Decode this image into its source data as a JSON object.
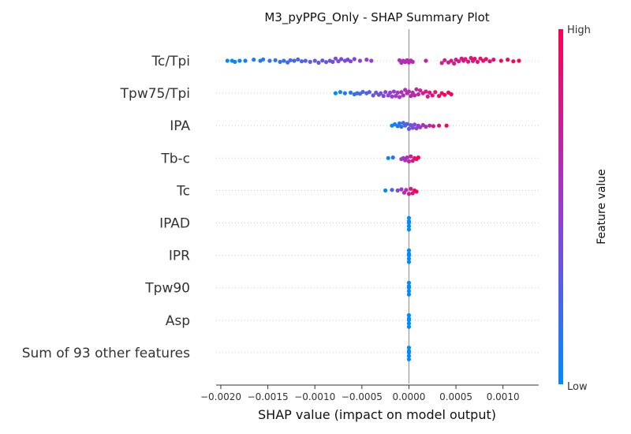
{
  "chart_data": {
    "type": "scatter",
    "subtype": "shap-beeswarm",
    "title": "M3_pyPPG_Only - SHAP Summary Plot",
    "xlabel": "SHAP value (impact on model output)",
    "xlim": [
      -0.00205,
      0.00138
    ],
    "x_ticks": [
      -0.002,
      -0.0015,
      -0.001,
      -0.0005,
      0.0,
      0.0005,
      0.001
    ],
    "x_tick_labels": [
      "−0.0020",
      "−0.0015",
      "−0.0010",
      "−0.0005",
      "0.0000",
      "0.0005",
      "0.0010"
    ],
    "features": [
      {
        "name": "Tc/Tpi",
        "points": [
          [
            -0.00193,
            0.0
          ],
          [
            -0.00188,
            0.0
          ],
          [
            -0.00185,
            0.1
          ],
          [
            -0.0018,
            0.0
          ],
          [
            -0.00174,
            0.0
          ],
          [
            -0.00165,
            0.1
          ],
          [
            -0.00158,
            0.0
          ],
          [
            -0.00155,
            0.12
          ],
          [
            -0.00148,
            0.0
          ],
          [
            -0.00142,
            0.05
          ],
          [
            -0.00137,
            0.1
          ],
          [
            -0.00133,
            0.0
          ],
          [
            -0.00129,
            0.15
          ],
          [
            -0.00126,
            0.05
          ],
          [
            -0.00122,
            0.0
          ],
          [
            -0.00118,
            0.12
          ],
          [
            -0.00114,
            0.05
          ],
          [
            -0.0011,
            0.0
          ],
          [
            -0.00105,
            0.1
          ],
          [
            -0.001,
            0.0
          ],
          [
            -0.00096,
            0.18
          ],
          [
            -0.00092,
            0.02
          ],
          [
            -0.00088,
            0.12
          ],
          [
            -0.00084,
            0.0
          ],
          [
            -0.00081,
            0.1
          ],
          [
            -0.00078,
            0.2
          ],
          [
            -0.00075,
            0.05
          ],
          [
            -0.00072,
            0.15
          ],
          [
            -0.00068,
            0.0
          ],
          [
            -0.00065,
            0.1
          ],
          [
            -0.00062,
            0.05
          ],
          [
            -0.00058,
            0.15
          ],
          [
            -0.00052,
            0.0
          ],
          [
            -0.00045,
            0.1
          ],
          [
            -0.0004,
            0.0
          ],
          [
            -0.0001,
            0.05
          ],
          [
            -8e-05,
            0.18
          ],
          [
            -6e-05,
            0.0
          ],
          [
            -4e-05,
            0.12
          ],
          [
            -2e-05,
            0.05
          ],
          [
            0.0,
            0.15
          ],
          [
            2e-05,
            0.02
          ],
          [
            4e-05,
            0.1
          ],
          [
            0.00018,
            0.0
          ],
          [
            0.00035,
            0.2
          ],
          [
            0.00038,
            0.05
          ],
          [
            0.00042,
            0.15
          ],
          [
            0.00045,
            0.0
          ],
          [
            0.00048,
            0.25
          ],
          [
            0.0005,
            0.1
          ],
          [
            0.00053,
            0.05
          ],
          [
            0.00056,
            0.2
          ],
          [
            0.00058,
            0.0
          ],
          [
            0.0006,
            0.15
          ],
          [
            0.00063,
            0.08
          ],
          [
            0.00066,
            0.25
          ],
          [
            0.00068,
            0.02
          ],
          [
            0.0007,
            0.18
          ],
          [
            0.00073,
            0.1
          ],
          [
            0.00076,
            0.2
          ],
          [
            0.00079,
            0.0
          ],
          [
            0.00082,
            0.15
          ],
          [
            0.00086,
            0.05
          ],
          [
            0.0009,
            0.1
          ],
          [
            0.00098,
            0.0
          ],
          [
            0.00105,
            0.1
          ],
          [
            0.00111,
            0.05
          ],
          [
            0.00117,
            0.0
          ]
        ]
      },
      {
        "name": "Tpw75/Tpi",
        "points": [
          [
            -0.00078,
            0.0
          ],
          [
            -0.00073,
            0.1
          ],
          [
            -0.00068,
            0.0
          ],
          [
            -0.00062,
            0.05
          ],
          [
            -0.00058,
            0.1
          ],
          [
            -0.00055,
            0.0
          ],
          [
            -0.00052,
            0.05
          ],
          [
            -0.00049,
            0.12
          ],
          [
            -0.00045,
            0.0
          ],
          [
            -0.00042,
            0.1
          ],
          [
            -0.00038,
            0.2
          ],
          [
            -0.00035,
            0.05
          ],
          [
            -0.00032,
            0.15
          ],
          [
            -0.0003,
            0.0
          ],
          [
            -0.00027,
            0.25
          ],
          [
            -0.00025,
            0.1
          ],
          [
            -0.00022,
            0.2
          ],
          [
            -0.0002,
            0.05
          ],
          [
            -0.00018,
            0.3
          ],
          [
            -0.00016,
            0.15
          ],
          [
            -0.00014,
            0.25
          ],
          [
            -0.00012,
            0.05
          ],
          [
            -0.0001,
            0.35
          ],
          [
            -8e-05,
            0.1
          ],
          [
            -6e-05,
            0.2
          ],
          [
            -4e-05,
            0.3
          ],
          [
            -2e-05,
            0.0
          ],
          [
            0.0,
            0.15
          ],
          [
            2e-05,
            0.25
          ],
          [
            4e-05,
            0.05
          ],
          [
            6e-05,
            0.2
          ],
          [
            8e-05,
            0.35
          ],
          [
            0.0001,
            0.1
          ],
          [
            0.00012,
            0.25
          ],
          [
            0.00015,
            0.0
          ],
          [
            0.00018,
            0.15
          ],
          [
            0.0002,
            0.3
          ],
          [
            0.00022,
            0.05
          ],
          [
            0.00025,
            0.2
          ],
          [
            0.00028,
            0.1
          ],
          [
            0.00032,
            0.25
          ],
          [
            0.00035,
            0.0
          ],
          [
            0.00038,
            0.15
          ],
          [
            0.00042,
            0.05
          ],
          [
            0.00045,
            0.1
          ]
        ]
      },
      {
        "name": "IPA",
        "points": [
          [
            -0.00018,
            0.0
          ],
          [
            -0.00015,
            0.12
          ],
          [
            -0.00012,
            0.05
          ],
          [
            -0.0001,
            0.2
          ],
          [
            -8e-05,
            0.1
          ],
          [
            -6e-05,
            0.25
          ],
          [
            -4e-05,
            0.0
          ],
          [
            -2e-05,
            0.15
          ],
          [
            0.0,
            0.3
          ],
          [
            2e-05,
            0.05
          ],
          [
            4e-05,
            0.2
          ],
          [
            6e-05,
            0.1
          ],
          [
            8e-05,
            0.25
          ],
          [
            0.0001,
            0.0
          ],
          [
            0.00012,
            0.15
          ],
          [
            0.00015,
            0.05
          ],
          [
            0.00018,
            0.1
          ],
          [
            0.00022,
            0.0
          ],
          [
            0.00026,
            0.05
          ],
          [
            0.00032,
            0.0
          ],
          [
            0.0004,
            0.0
          ]
        ]
      },
      {
        "name": "Tb-c",
        "points": [
          [
            -0.00022,
            0.0
          ],
          [
            -0.00017,
            0.05
          ],
          [
            -8e-05,
            0.1
          ],
          [
            -6e-05,
            0.0
          ],
          [
            -4e-05,
            0.2
          ],
          [
            -2e-05,
            0.05
          ],
          [
            0.0,
            0.3
          ],
          [
            2e-05,
            0.15
          ],
          [
            4e-05,
            0.25
          ],
          [
            6e-05,
            0.0
          ],
          [
            8e-05,
            0.1
          ],
          [
            0.0001,
            0.05
          ]
        ]
      },
      {
        "name": "Tc",
        "points": [
          [
            -0.00025,
            0.0
          ],
          [
            -0.00018,
            0.05
          ],
          [
            -0.00012,
            0.0
          ],
          [
            -8e-05,
            0.1
          ],
          [
            -5e-05,
            0.2
          ],
          [
            -3e-05,
            0.05
          ],
          [
            0.0,
            0.3
          ],
          [
            2e-05,
            0.15
          ],
          [
            4e-05,
            0.25
          ],
          [
            6e-05,
            0.0
          ],
          [
            8e-05,
            0.1
          ]
        ]
      },
      {
        "name": "IPAD",
        "points": [
          [
            0.0,
            0.0
          ],
          [
            0.0,
            0.15
          ],
          [
            0.0,
            0.3
          ],
          [
            0.0,
            0.45
          ],
          [
            0.0,
            0.6
          ]
        ]
      },
      {
        "name": "IPR",
        "points": [
          [
            0.0,
            0.0
          ],
          [
            0.0,
            0.15
          ],
          [
            0.0,
            0.3
          ],
          [
            0.0,
            0.45
          ],
          [
            0.0,
            0.6
          ]
        ]
      },
      {
        "name": "Tpw90",
        "points": [
          [
            0.0,
            0.0
          ],
          [
            0.0,
            0.15
          ],
          [
            0.0,
            0.3
          ],
          [
            0.0,
            0.45
          ],
          [
            0.0,
            0.6
          ]
        ]
      },
      {
        "name": "Asp",
        "points": [
          [
            0.0,
            0.0
          ],
          [
            0.0,
            0.15
          ],
          [
            0.0,
            0.3
          ],
          [
            0.0,
            0.45
          ],
          [
            0.0,
            0.6
          ]
        ]
      },
      {
        "name": "Sum of 93 other features",
        "points": [
          [
            0.0,
            0.0
          ],
          [
            0.0,
            0.15
          ],
          [
            0.0,
            0.3
          ],
          [
            0.0,
            0.45
          ],
          [
            0.0,
            0.6
          ]
        ]
      }
    ],
    "colorbar": {
      "title": "Feature value",
      "high_label": "High",
      "low_label": "Low",
      "low_color": "#008bfb",
      "high_color": "#ff0052"
    },
    "grid": false,
    "zero_line": true
  }
}
